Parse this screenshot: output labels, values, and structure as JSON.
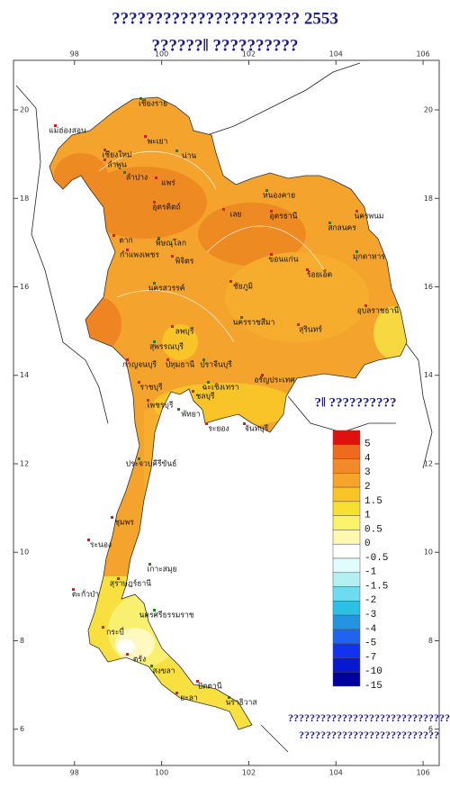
{
  "header": {
    "title": "?????????????????????? 2553",
    "subtitle": "??????‖  ??????????"
  },
  "map": {
    "xlim": [
      96.6,
      106.37
    ],
    "ylim": [
      5.18,
      21.12
    ],
    "xticks": [
      98,
      100,
      102,
      104,
      106
    ],
    "yticks": [
      20,
      18,
      16,
      14,
      12,
      10,
      8,
      6
    ]
  },
  "legend": {
    "title": "?‖ ??????????",
    "colors": [
      "#e01010",
      "#ee6a1c",
      "#f2892a",
      "#f6a42a",
      "#f8c428",
      "#f8e030",
      "#faf26a",
      "#fff8b0",
      "#ffffff",
      "#e2fbfb",
      "#b4f0f2",
      "#6cdcf0",
      "#2cc0e4",
      "#2294e2",
      "#2064ee",
      "#1232f0",
      "#0818d0",
      "#00009c"
    ],
    "labels": [
      "5",
      "4",
      "3",
      "2",
      "1.5",
      "1",
      "0.5",
      "0",
      "-0.5",
      "-1",
      "-1.5",
      "-2",
      "-3",
      "-4",
      "-5",
      "-7",
      "-10",
      "-15"
    ]
  },
  "provinces": [
    "เชียงราย",
    "แม่ฮ่องสอน",
    "พะเยา",
    "น่าน",
    "เชียงใหม่",
    "ลำพูน",
    "ลำปาง",
    "แพร่",
    "อุตรดิตถ์",
    "หนองคาย",
    "อุดรธานี",
    "นครพนม",
    "สกลนคร",
    "เลย",
    "ตาก",
    "พิษณุโลก",
    "กำแพงเพชร",
    "พิจิตร",
    "มุกดาหาร",
    "ขอนแก่น",
    "ร้อยเอ็ด",
    "นครสวรรค์",
    "ชัยภูมิ",
    "อุบลราชธานี",
    "นครราชสีมา",
    "สุรินทร์",
    "ลพบุรี",
    "สุพรรณบุรี",
    "กาญจนบุรี",
    "ปทุมธานี",
    "ปราจีนบุรี",
    "อรัญประเทศ",
    "ราชบุรี",
    "ฉะเชิงเทรา",
    "ชลบุรี",
    "เพชรบุรี",
    "พัทยา",
    "ระยอง",
    "จันทบุรี",
    "ประจวบคีรีขันธ์",
    "ชุมพร",
    "ระนอง",
    "เกาะสมุย",
    "สุราษฎร์ธานี",
    "ตะกั่วป่า",
    "นครศรีธรรมราช",
    "กระบี่",
    "ตรัง",
    "สงขลา",
    "ยะลา",
    "ปัตตานี",
    "นราธิวาส"
  ],
  "footnote": [
    "??????????????????????????????",
    "??????????????????????????"
  ]
}
